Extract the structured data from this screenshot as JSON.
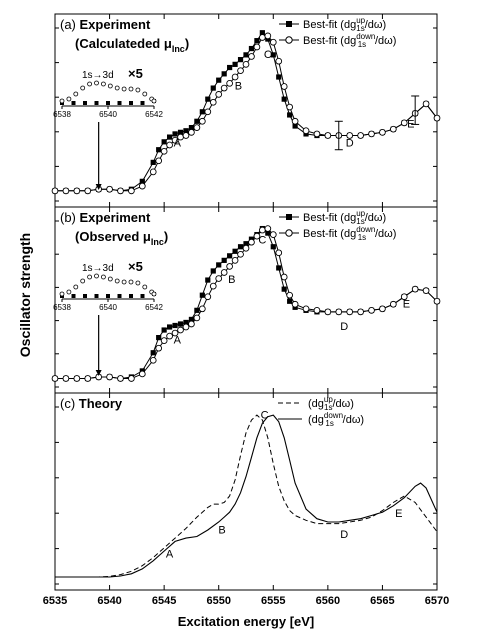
{
  "chart_data": [
    {
      "type": "line",
      "panel_label": "(a) Experiment",
      "panel_sublabel": "(Calculateded μInc)",
      "legend": [
        {
          "name": "Best-fit (dg1s up/dω)",
          "marker": "filled-square"
        },
        {
          "name": "Best-fit (dg1s down/dω)",
          "marker": "open-circle"
        }
      ],
      "xlim": [
        6535,
        6570
      ],
      "ylim": [
        0,
        1.05
      ],
      "series": [
        {
          "name": "up",
          "marker": "filled-square",
          "x": [
            6535,
            6536,
            6537,
            6538,
            6539,
            6540,
            6541,
            6542,
            6543,
            6544,
            6544.5,
            6545,
            6545.5,
            6546,
            6546.5,
            6547,
            6547.5,
            6548,
            6548.5,
            6549,
            6549.5,
            6550,
            6550.5,
            6551,
            6551.5,
            6552,
            6552.5,
            6553,
            6553.5,
            6554,
            6554.5,
            6555,
            6555.5,
            6556,
            6556.5,
            6557,
            6558,
            6559,
            6560,
            6561,
            6562,
            6563,
            6564,
            6565,
            6566,
            6567,
            6568,
            6569,
            6570
          ],
          "y": [
            0.02,
            0.02,
            0.02,
            0.02,
            0.03,
            0.03,
            0.02,
            0.03,
            0.08,
            0.2,
            0.28,
            0.33,
            0.36,
            0.38,
            0.39,
            0.4,
            0.42,
            0.46,
            0.52,
            0.6,
            0.67,
            0.72,
            0.76,
            0.8,
            0.82,
            0.85,
            0.88,
            0.92,
            0.97,
            1.02,
            0.98,
            0.88,
            0.74,
            0.6,
            0.5,
            0.43,
            0.38,
            0.37,
            0.37,
            0.37,
            0.37,
            0.37,
            0.38,
            0.39,
            0.41,
            0.45,
            0.51,
            0.57,
            0.48
          ]
        },
        {
          "name": "down",
          "marker": "open-circle",
          "x": [
            6535,
            6536,
            6537,
            6538,
            6539,
            6540,
            6541,
            6542,
            6543,
            6544,
            6544.5,
            6545,
            6545.5,
            6546,
            6546.5,
            6547,
            6547.5,
            6548,
            6548.5,
            6549,
            6549.5,
            6550,
            6550.5,
            6551,
            6551.5,
            6552,
            6552.5,
            6553,
            6553.5,
            6554,
            6554.5,
            6555,
            6555.5,
            6556,
            6556.5,
            6557,
            6558,
            6559,
            6560,
            6561,
            6562,
            6563,
            6564,
            6565,
            6566,
            6567,
            6568,
            6569,
            6570
          ],
          "y": [
            0.02,
            0.02,
            0.02,
            0.02,
            0.03,
            0.03,
            0.02,
            0.02,
            0.05,
            0.14,
            0.21,
            0.27,
            0.31,
            0.34,
            0.36,
            0.37,
            0.39,
            0.42,
            0.46,
            0.52,
            0.58,
            0.63,
            0.67,
            0.7,
            0.74,
            0.78,
            0.82,
            0.87,
            0.93,
            0.99,
            1.0,
            0.96,
            0.84,
            0.68,
            0.55,
            0.46,
            0.4,
            0.38,
            0.37,
            0.37,
            0.37,
            0.37,
            0.38,
            0.39,
            0.41,
            0.45,
            0.51,
            0.57,
            0.48
          ]
        }
      ],
      "error_bars": [
        {
          "x": 6561,
          "y": 0.37,
          "err": 0.09
        },
        {
          "x": 6568,
          "y": 0.53,
          "err": 0.09
        }
      ],
      "annotations": [
        {
          "text": "A",
          "x": 6546.2,
          "y": 0.3
        },
        {
          "text": "B",
          "x": 6551.8,
          "y": 0.66
        },
        {
          "text": "C",
          "x": 6554.5,
          "y": 0.86
        },
        {
          "text": "D",
          "x": 6562,
          "y": 0.3
        },
        {
          "text": "E",
          "x": 6567.6,
          "y": 0.42
        }
      ],
      "inset": {
        "label": "1s→3d",
        "scale_label": "×5",
        "xlim": [
          6538,
          6542
        ],
        "x_ticks": [
          "6538",
          "6540",
          "6542"
        ],
        "series": [
          {
            "name": "up",
            "marker": "filled-square",
            "x": [
              6538,
              6538.5,
              6539,
              6539.5,
              6540,
              6540.5,
              6541,
              6541.5,
              6542
            ],
            "y": [
              0,
              0,
              0,
              0,
              0,
              0,
              0,
              0,
              0.1
            ]
          },
          {
            "name": "down",
            "marker": "open-circle",
            "x": [
              6538,
              6538.3,
              6538.6,
              6538.9,
              6539.2,
              6539.5,
              6539.8,
              6540.1,
              6540.4,
              6540.7,
              6541,
              6541.3,
              6541.6,
              6541.9,
              6542
            ],
            "y": [
              0.1,
              0.2,
              0.45,
              0.75,
              0.95,
              1.0,
              0.95,
              0.85,
              0.75,
              0.7,
              0.7,
              0.65,
              0.45,
              0.2,
              0.1
            ]
          }
        ]
      }
    },
    {
      "type": "line",
      "panel_label": "(b) Experiment",
      "panel_sublabel": "(Observed μInc)",
      "legend": [
        {
          "name": "Best-fit (dg1s up/dω)",
          "marker": "filled-square"
        },
        {
          "name": "Best-fit (dg1s down/dω)",
          "marker": "open-circle"
        }
      ],
      "xlim": [
        6535,
        6570
      ],
      "ylim": [
        0,
        1.05
      ],
      "series": [
        {
          "name": "up",
          "marker": "filled-square",
          "x": [
            6535,
            6536,
            6537,
            6538,
            6539,
            6540,
            6541,
            6542,
            6543,
            6544,
            6544.5,
            6545,
            6545.5,
            6546,
            6546.5,
            6547,
            6547.5,
            6548,
            6548.5,
            6549,
            6549.5,
            6550,
            6550.5,
            6551,
            6551.5,
            6552,
            6552.5,
            6553,
            6553.5,
            6554,
            6554.5,
            6555,
            6555.5,
            6556,
            6556.5,
            6557,
            6558,
            6559,
            6560,
            6561,
            6562,
            6563,
            6564,
            6565,
            6566,
            6567,
            6568,
            6569,
            6570
          ],
          "y": [
            0.01,
            0.01,
            0.01,
            0.01,
            0.02,
            0.02,
            0.01,
            0.02,
            0.06,
            0.18,
            0.28,
            0.33,
            0.35,
            0.36,
            0.37,
            0.38,
            0.4,
            0.46,
            0.56,
            0.66,
            0.72,
            0.76,
            0.79,
            0.82,
            0.85,
            0.88,
            0.9,
            0.93,
            0.96,
            1.0,
            0.97,
            0.88,
            0.74,
            0.6,
            0.52,
            0.48,
            0.46,
            0.45,
            0.45,
            0.45,
            0.45,
            0.45,
            0.46,
            0.47,
            0.5,
            0.55,
            0.6,
            0.59,
            0.52
          ]
        },
        {
          "name": "down",
          "marker": "open-circle",
          "x": [
            6535,
            6536,
            6537,
            6538,
            6539,
            6540,
            6541,
            6542,
            6543,
            6544,
            6544.5,
            6545,
            6545.5,
            6546,
            6546.5,
            6547,
            6547.5,
            6548,
            6548.5,
            6549,
            6549.5,
            6550,
            6550.5,
            6551,
            6551.5,
            6552,
            6552.5,
            6553,
            6553.5,
            6554,
            6554.5,
            6555,
            6555.5,
            6556,
            6556.5,
            6557,
            6558,
            6559,
            6560,
            6561,
            6562,
            6563,
            6564,
            6565,
            6566,
            6567,
            6568,
            6569,
            6570
          ],
          "y": [
            0.01,
            0.01,
            0.01,
            0.01,
            0.02,
            0.02,
            0.01,
            0.01,
            0.04,
            0.13,
            0.21,
            0.26,
            0.29,
            0.31,
            0.33,
            0.35,
            0.37,
            0.41,
            0.47,
            0.55,
            0.62,
            0.67,
            0.71,
            0.75,
            0.79,
            0.83,
            0.87,
            0.91,
            0.95,
            0.99,
            1.0,
            0.96,
            0.84,
            0.68,
            0.56,
            0.5,
            0.47,
            0.46,
            0.45,
            0.45,
            0.45,
            0.45,
            0.46,
            0.47,
            0.5,
            0.55,
            0.6,
            0.59,
            0.52
          ]
        }
      ],
      "annotations": [
        {
          "text": "A",
          "x": 6546.2,
          "y": 0.24
        },
        {
          "text": "B",
          "x": 6551.2,
          "y": 0.64
        },
        {
          "text": "C",
          "x": 6554,
          "y": 0.9
        },
        {
          "text": "D",
          "x": 6561.5,
          "y": 0.33
        },
        {
          "text": "E",
          "x": 6567.2,
          "y": 0.48
        }
      ],
      "inset": {
        "label": "1s→3d",
        "scale_label": "×5",
        "xlim": [
          6538,
          6542
        ],
        "x_ticks": [
          "6538",
          "6540",
          "6542"
        ],
        "series": [
          {
            "name": "up",
            "marker": "filled-square",
            "x": [
              6538,
              6538.5,
              6539,
              6539.5,
              6540,
              6540.5,
              6541,
              6541.5,
              6542
            ],
            "y": [
              0,
              0,
              0,
              0,
              0,
              0,
              0,
              0,
              0.1
            ]
          },
          {
            "name": "down",
            "marker": "open-circle",
            "x": [
              6538,
              6538.3,
              6538.6,
              6538.9,
              6539.2,
              6539.5,
              6539.8,
              6540.1,
              6540.4,
              6540.7,
              6541,
              6541.3,
              6541.6,
              6541.9,
              6542
            ],
            "y": [
              0.1,
              0.2,
              0.45,
              0.75,
              0.95,
              1.0,
              0.95,
              0.85,
              0.75,
              0.7,
              0.7,
              0.65,
              0.45,
              0.2,
              0.1
            ]
          }
        ]
      }
    },
    {
      "type": "line",
      "panel_label": "(c) Theory",
      "legend": [
        {
          "name": "(dg1s up/dω)",
          "style": "dashed"
        },
        {
          "name": "(dg1s down/dω)",
          "style": "solid"
        }
      ],
      "xlim": [
        6535,
        6570
      ],
      "ylim": [
        0,
        1.05
      ],
      "series": [
        {
          "name": "up",
          "style": "dashed",
          "x": [
            6535,
            6539,
            6540,
            6541,
            6542,
            6543,
            6544,
            6545,
            6546,
            6547,
            6548,
            6549,
            6549.5,
            6550,
            6550.5,
            6551,
            6551.5,
            6552,
            6552.5,
            6553,
            6553.5,
            6554,
            6554.5,
            6555,
            6555.5,
            6556,
            6556.5,
            6557,
            6558,
            6559,
            6560,
            6561,
            6562,
            6563,
            6564,
            6565,
            6566,
            6567,
            6568,
            6569,
            6570
          ],
          "y": [
            0,
            0,
            0.004,
            0.015,
            0.035,
            0.07,
            0.12,
            0.18,
            0.24,
            0.3,
            0.37,
            0.43,
            0.45,
            0.45,
            0.46,
            0.5,
            0.6,
            0.75,
            0.89,
            0.97,
            1.0,
            0.97,
            0.86,
            0.7,
            0.56,
            0.47,
            0.41,
            0.38,
            0.35,
            0.33,
            0.33,
            0.33,
            0.34,
            0.35,
            0.37,
            0.41,
            0.46,
            0.5,
            0.46,
            0.37,
            0.28
          ]
        },
        {
          "name": "down",
          "style": "solid",
          "x": [
            6535,
            6540,
            6541,
            6542,
            6543,
            6544,
            6545,
            6546,
            6547,
            6548,
            6549,
            6550,
            6550.5,
            6551,
            6551.5,
            6552,
            6552.5,
            6553,
            6553.5,
            6554,
            6554.5,
            6555,
            6555.5,
            6556,
            6556.5,
            6557,
            6558,
            6559,
            6560,
            6561,
            6562,
            6563,
            6564,
            6565,
            6566,
            6567,
            6568,
            6568.5,
            6569,
            6570
          ],
          "y": [
            0,
            0,
            0.006,
            0.02,
            0.05,
            0.1,
            0.16,
            0.22,
            0.24,
            0.25,
            0.29,
            0.34,
            0.37,
            0.4,
            0.45,
            0.52,
            0.62,
            0.74,
            0.86,
            0.95,
            0.99,
            1.0,
            0.96,
            0.86,
            0.72,
            0.58,
            0.42,
            0.36,
            0.34,
            0.34,
            0.35,
            0.36,
            0.38,
            0.4,
            0.44,
            0.49,
            0.56,
            0.58,
            0.55,
            0.4
          ]
        }
      ],
      "annotations": [
        {
          "text": "A",
          "x": 6545.5,
          "y": 0.12
        },
        {
          "text": "B",
          "x": 6550.3,
          "y": 0.27
        },
        {
          "text": "C",
          "x": 6554.2,
          "y": 0.98
        },
        {
          "text": "D",
          "x": 6561.5,
          "y": 0.24
        },
        {
          "text": "E",
          "x": 6566.5,
          "y": 0.37
        }
      ]
    }
  ],
  "x_axis": {
    "label": "Excitation energy [eV]",
    "ticks": [
      6535,
      6540,
      6545,
      6550,
      6555,
      6560,
      6565,
      6570
    ],
    "range": [
      6535,
      6570
    ]
  },
  "y_axis": {
    "label": "Oscillator strength"
  }
}
